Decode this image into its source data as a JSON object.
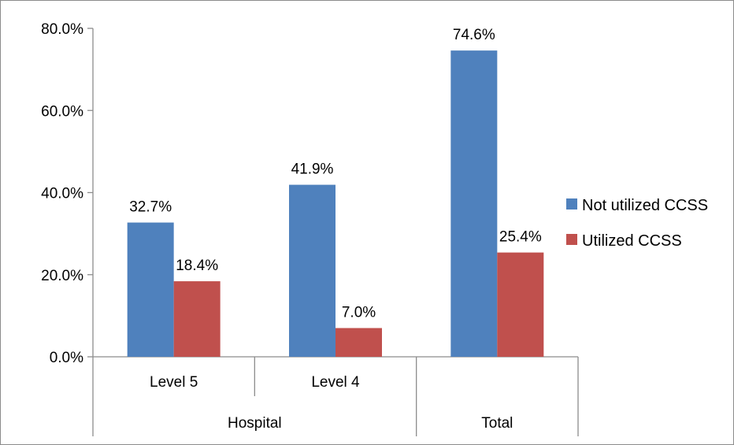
{
  "chart_data": {
    "type": "bar",
    "categories": [
      "Level 5",
      "Level 4",
      "Total"
    ],
    "groups": [
      {
        "label": "Hospital",
        "categories": [
          "Level 5",
          "Level 4"
        ]
      },
      {
        "label": "",
        "categories": [
          "Total"
        ]
      }
    ],
    "series": [
      {
        "name": "Not utilized CCSS",
        "color": "#4f81bd",
        "values": [
          32.7,
          41.9,
          74.6
        ],
        "labels": [
          "32.7%",
          "41.9%",
          "74.6%"
        ]
      },
      {
        "name": "Utilized CCSS",
        "color": "#c0504d",
        "values": [
          18.4,
          7.0,
          25.4
        ],
        "labels": [
          "18.4%",
          "7.0%",
          "25.4%"
        ]
      }
    ],
    "category_labels": [
      "Level 5",
      "Level 4",
      ""
    ],
    "group_labels": [
      "Hospital",
      "Total"
    ],
    "yticks": [
      0,
      20,
      40,
      60,
      80
    ],
    "ytick_labels": [
      "0.0%",
      "20.0%",
      "40.0%",
      "60.0%",
      "80.0%"
    ],
    "ylim": [
      0,
      80
    ],
    "title": "",
    "xlabel": "",
    "ylabel": "",
    "grid": false,
    "legend_position": "right"
  }
}
